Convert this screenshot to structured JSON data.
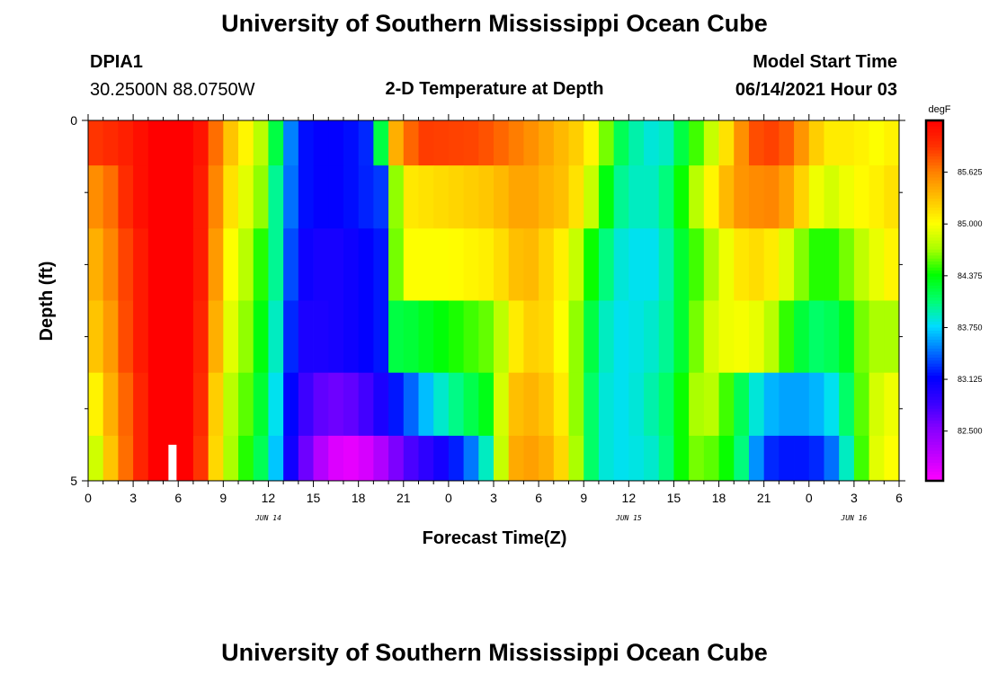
{
  "header": {
    "title": "University of Southern Mississippi Ocean Cube",
    "station": "DPIA1",
    "coords": "30.2500N  88.0750W",
    "subtitle": "2-D Temperature at Depth",
    "model_label": "Model Start Time",
    "model_time": "06/14/2021 Hour 03",
    "footer_title": "University of Southern Mississippi Ocean Cube"
  },
  "chart_data": {
    "type": "heatmap",
    "xlabel": "Forecast Time(Z)",
    "ylabel": "Depth (ft)",
    "x_ticks": [
      "0",
      "3",
      "6",
      "9",
      "12",
      "15",
      "18",
      "21",
      "0",
      "3",
      "6",
      "9",
      "12",
      "15",
      "18",
      "21",
      "0",
      "3",
      "6"
    ],
    "date_labels": [
      {
        "text": "JUN 14",
        "x_hour": 12
      },
      {
        "text": "JUN 15",
        "x_hour": 36
      },
      {
        "text": "JUN 16",
        "x_hour": 51
      }
    ],
    "y_ticks": [
      "0",
      "5"
    ],
    "xlim": [
      0,
      54
    ],
    "ylim": [
      0,
      5
    ],
    "colorbar": {
      "unit": "degF",
      "labels": [
        "85.625",
        "85.000",
        "84.375",
        "83.750",
        "83.125",
        "82.500"
      ],
      "min": 81.9,
      "max": 86.25
    },
    "depth_rows": [
      0.25,
      1.0,
      2.0,
      3.0,
      4.0,
      4.75
    ],
    "row_keypoints": [
      [
        [
          0,
          85.9
        ],
        [
          2,
          86.0
        ],
        [
          3,
          86.1
        ],
        [
          4.5,
          86.25
        ],
        [
          7,
          86.25
        ],
        [
          8,
          86.0
        ],
        [
          9,
          85.4
        ],
        [
          10,
          85.2
        ],
        [
          11,
          84.9
        ],
        [
          12,
          84.6
        ],
        [
          12.5,
          84.2
        ],
        [
          13,
          83.8
        ],
        [
          14,
          83.2
        ],
        [
          16,
          83.1
        ],
        [
          18,
          83.2
        ],
        [
          19,
          83.3
        ],
        [
          19.5,
          84.2
        ],
        [
          20.5,
          85.4
        ],
        [
          22,
          85.9
        ],
        [
          26,
          85.85
        ],
        [
          29,
          85.6
        ],
        [
          30,
          85.5
        ],
        [
          33,
          85.2
        ],
        [
          34,
          84.9
        ],
        [
          35,
          84.3
        ],
        [
          36,
          84.0
        ],
        [
          38,
          83.8
        ],
        [
          39,
          84.0
        ],
        [
          40,
          84.4
        ],
        [
          41,
          84.6
        ],
        [
          42,
          85.0
        ],
        [
          43,
          85.3
        ],
        [
          44,
          85.8
        ],
        [
          46,
          85.9
        ],
        [
          48,
          85.4
        ],
        [
          49,
          85.1
        ],
        [
          51,
          85.1
        ],
        [
          52.5,
          85.0
        ],
        [
          54,
          85.1
        ]
      ],
      [
        [
          0,
          85.5
        ],
        [
          1.5,
          85.7
        ],
        [
          3,
          86.1
        ],
        [
          4.5,
          86.25
        ],
        [
          7,
          86.25
        ],
        [
          8,
          85.9
        ],
        [
          9,
          85.3
        ],
        [
          10,
          85.0
        ],
        [
          11,
          84.8
        ],
        [
          12,
          84.5
        ],
        [
          12.5,
          84.0
        ],
        [
          13,
          83.7
        ],
        [
          14,
          83.2
        ],
        [
          16,
          83.1
        ],
        [
          18,
          83.2
        ],
        [
          19.5,
          83.3
        ],
        [
          20,
          84.2
        ],
        [
          21,
          85.1
        ],
        [
          24,
          85.2
        ],
        [
          27,
          85.3
        ],
        [
          29,
          85.5
        ],
        [
          30,
          85.4
        ],
        [
          32,
          85.3
        ],
        [
          33,
          85.0
        ],
        [
          34,
          84.6
        ],
        [
          35,
          84.1
        ],
        [
          36,
          83.9
        ],
        [
          38,
          83.9
        ],
        [
          39,
          84.2
        ],
        [
          40,
          84.6
        ],
        [
          41,
          84.9
        ],
        [
          42,
          85.2
        ],
        [
          43,
          85.5
        ],
        [
          45,
          85.6
        ],
        [
          46,
          85.6
        ],
        [
          48,
          85.1
        ],
        [
          49,
          84.8
        ],
        [
          50,
          84.9
        ],
        [
          51,
          85.0
        ],
        [
          53,
          85.1
        ],
        [
          54,
          85.2
        ]
      ],
      [
        [
          0,
          85.3
        ],
        [
          1.5,
          85.6
        ],
        [
          3,
          86.0
        ],
        [
          4.5,
          86.25
        ],
        [
          7,
          86.25
        ],
        [
          8,
          85.9
        ],
        [
          9,
          85.1
        ],
        [
          10,
          84.9
        ],
        [
          11,
          84.6
        ],
        [
          12,
          84.3
        ],
        [
          12.5,
          84.0
        ],
        [
          13,
          83.6
        ],
        [
          14,
          83.1
        ],
        [
          16,
          83.0
        ],
        [
          18,
          83.1
        ],
        [
          19.5,
          83.2
        ],
        [
          20.5,
          84.6
        ],
        [
          21,
          85.0
        ],
        [
          24,
          85.0
        ],
        [
          27,
          85.1
        ],
        [
          29,
          85.4
        ],
        [
          30,
          85.3
        ],
        [
          32,
          85.0
        ],
        [
          33,
          84.6
        ],
        [
          34,
          84.2
        ],
        [
          35,
          83.9
        ],
        [
          36,
          83.8
        ],
        [
          38,
          83.8
        ],
        [
          39,
          84.1
        ],
        [
          40,
          84.4
        ],
        [
          41,
          84.6
        ],
        [
          42,
          84.8
        ],
        [
          43,
          85.1
        ],
        [
          45,
          85.2
        ],
        [
          46,
          85.0
        ],
        [
          48,
          84.5
        ],
        [
          49,
          84.4
        ],
        [
          50,
          84.5
        ],
        [
          51,
          84.7
        ],
        [
          53,
          85.0
        ],
        [
          54,
          85.1
        ]
      ],
      [
        [
          0,
          85.2
        ],
        [
          1.5,
          85.5
        ],
        [
          3,
          86.0
        ],
        [
          4.5,
          86.25
        ],
        [
          7,
          86.25
        ],
        [
          8,
          85.8
        ],
        [
          9,
          85.0
        ],
        [
          10,
          84.8
        ],
        [
          11,
          84.5
        ],
        [
          12,
          84.2
        ],
        [
          12.5,
          83.9
        ],
        [
          13,
          83.5
        ],
        [
          14,
          83.0
        ],
        [
          16,
          83.0
        ],
        [
          18,
          83.1
        ],
        [
          19.5,
          83.2
        ],
        [
          20.5,
          84.2
        ],
        [
          21,
          84.2
        ],
        [
          24,
          84.4
        ],
        [
          27,
          84.6
        ],
        [
          28.5,
          85.1
        ],
        [
          30,
          85.3
        ],
        [
          32,
          84.9
        ],
        [
          33,
          84.4
        ],
        [
          34,
          84.0
        ],
        [
          35,
          83.8
        ],
        [
          36,
          83.8
        ],
        [
          38,
          83.9
        ],
        [
          39,
          84.1
        ],
        [
          40,
          84.4
        ],
        [
          41,
          84.8
        ],
        [
          42,
          84.9
        ],
        [
          43,
          85.0
        ],
        [
          45,
          84.9
        ],
        [
          46,
          84.6
        ],
        [
          48,
          84.1
        ],
        [
          49,
          84.1
        ],
        [
          50,
          84.2
        ],
        [
          51,
          84.4
        ],
        [
          52,
          84.8
        ],
        [
          53,
          84.6
        ],
        [
          54,
          84.8
        ]
      ],
      [
        [
          0,
          84.9
        ],
        [
          1.5,
          85.4
        ],
        [
          3,
          85.9
        ],
        [
          4.5,
          86.25
        ],
        [
          7,
          86.25
        ],
        [
          8,
          85.7
        ],
        [
          9,
          84.8
        ],
        [
          10,
          84.7
        ],
        [
          11,
          84.4
        ],
        [
          12,
          84.1
        ],
        [
          12.5,
          83.8
        ],
        [
          13,
          83.4
        ],
        [
          14,
          82.9
        ],
        [
          16,
          82.6
        ],
        [
          18,
          82.7
        ],
        [
          19.5,
          83.0
        ],
        [
          20,
          83.1
        ],
        [
          21,
          83.3
        ],
        [
          23,
          83.8
        ],
        [
          25,
          84.1
        ],
        [
          27,
          84.4
        ],
        [
          28,
          85.3
        ],
        [
          30,
          85.4
        ],
        [
          32,
          85.0
        ],
        [
          33,
          84.3
        ],
        [
          34,
          83.9
        ],
        [
          35,
          83.8
        ],
        [
          36,
          83.8
        ],
        [
          38,
          84.0
        ],
        [
          39,
          84.2
        ],
        [
          40,
          84.6
        ],
        [
          41,
          84.8
        ],
        [
          42,
          84.7
        ],
        [
          43,
          84.3
        ],
        [
          45,
          83.7
        ],
        [
          46,
          83.6
        ],
        [
          48,
          83.6
        ],
        [
          49,
          83.7
        ],
        [
          50,
          83.9
        ],
        [
          51,
          84.3
        ],
        [
          52,
          84.8
        ],
        [
          53,
          84.9
        ],
        [
          54,
          85.0
        ]
      ],
      [
        [
          0,
          84.6
        ],
        [
          1.5,
          85.3
        ],
        [
          3,
          85.9
        ],
        [
          4.5,
          86.25
        ],
        [
          7,
          86.25
        ],
        [
          8,
          85.6
        ],
        [
          9,
          84.8
        ],
        [
          10,
          84.6
        ],
        [
          11,
          84.3
        ],
        [
          12,
          84.0
        ],
        [
          12.5,
          83.7
        ],
        [
          13,
          83.3
        ],
        [
          14,
          82.8
        ],
        [
          16,
          82.1
        ],
        [
          18,
          82.0
        ],
        [
          19.5,
          82.3
        ],
        [
          21,
          82.7
        ],
        [
          24,
          83.1
        ],
        [
          26,
          83.6
        ],
        [
          27,
          84.2
        ],
        [
          28,
          85.4
        ],
        [
          30,
          85.5
        ],
        [
          32,
          85.1
        ],
        [
          33,
          84.3
        ],
        [
          34,
          83.9
        ],
        [
          35,
          83.8
        ],
        [
          36,
          83.8
        ],
        [
          38,
          83.9
        ],
        [
          39,
          84.2
        ],
        [
          40,
          84.6
        ],
        [
          41,
          84.6
        ],
        [
          42,
          84.5
        ],
        [
          43,
          84.3
        ],
        [
          44,
          83.8
        ],
        [
          45,
          83.3
        ],
        [
          46,
          83.2
        ],
        [
          48,
          83.2
        ],
        [
          49,
          83.3
        ],
        [
          50,
          83.6
        ],
        [
          51,
          84.2
        ],
        [
          52,
          84.8
        ],
        [
          53,
          85.0
        ],
        [
          54,
          85.0
        ]
      ]
    ],
    "colormap": [
      "#ff00ff",
      "#c000ff",
      "#8800ff",
      "#3a00ff",
      "#0000ff",
      "#0070ff",
      "#00ddff",
      "#00ff70",
      "#00ff00",
      "#aaff00",
      "#ffff00",
      "#ffc000",
      "#ff8000",
      "#ff3000",
      "#ff0000"
    ]
  }
}
